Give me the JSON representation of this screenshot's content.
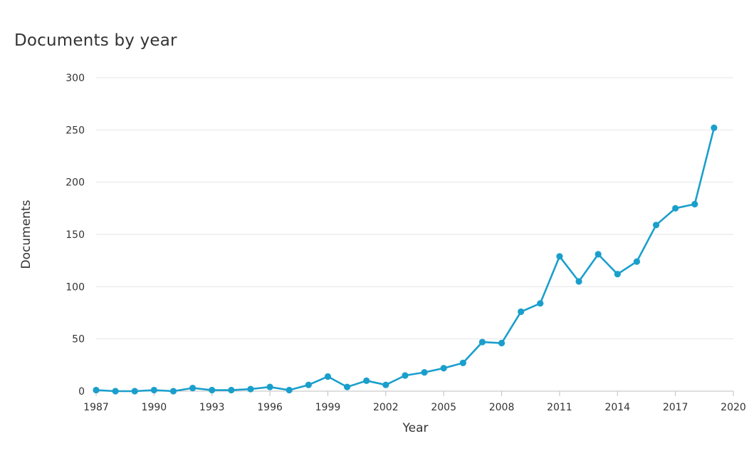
{
  "chart_title": "Documents by year",
  "chart_data": {
    "type": "line",
    "title": "Documents by year",
    "xlabel": "Year",
    "ylabel": "Documents",
    "x": [
      1987,
      1988,
      1989,
      1990,
      1991,
      1992,
      1993,
      1994,
      1995,
      1996,
      1997,
      1998,
      1999,
      2000,
      2001,
      2002,
      2003,
      2004,
      2005,
      2006,
      2007,
      2008,
      2009,
      2010,
      2011,
      2012,
      2013,
      2014,
      2015,
      2016,
      2017,
      2018,
      2019
    ],
    "series": [
      {
        "values": [
          1,
          0,
          0,
          1,
          0,
          3,
          1,
          1,
          2,
          4,
          1,
          6,
          14,
          4,
          10,
          6,
          15,
          18,
          22,
          27,
          47,
          46,
          76,
          84,
          129,
          105,
          131,
          112,
          124,
          159,
          175,
          179,
          252
        ],
        "color": "#1a9fcc"
      }
    ],
    "xticks": [
      "1987",
      "1990",
      "1993",
      "1996",
      "1999",
      "2002",
      "2005",
      "2008",
      "2011",
      "2014",
      "2017",
      "2020"
    ],
    "yticks": [
      "0",
      "50",
      "100",
      "150",
      "200",
      "250",
      "300"
    ],
    "xlim": [
      1987,
      2020
    ],
    "ylim": [
      0,
      300
    ],
    "grid": "horizontal",
    "legend": "none"
  }
}
